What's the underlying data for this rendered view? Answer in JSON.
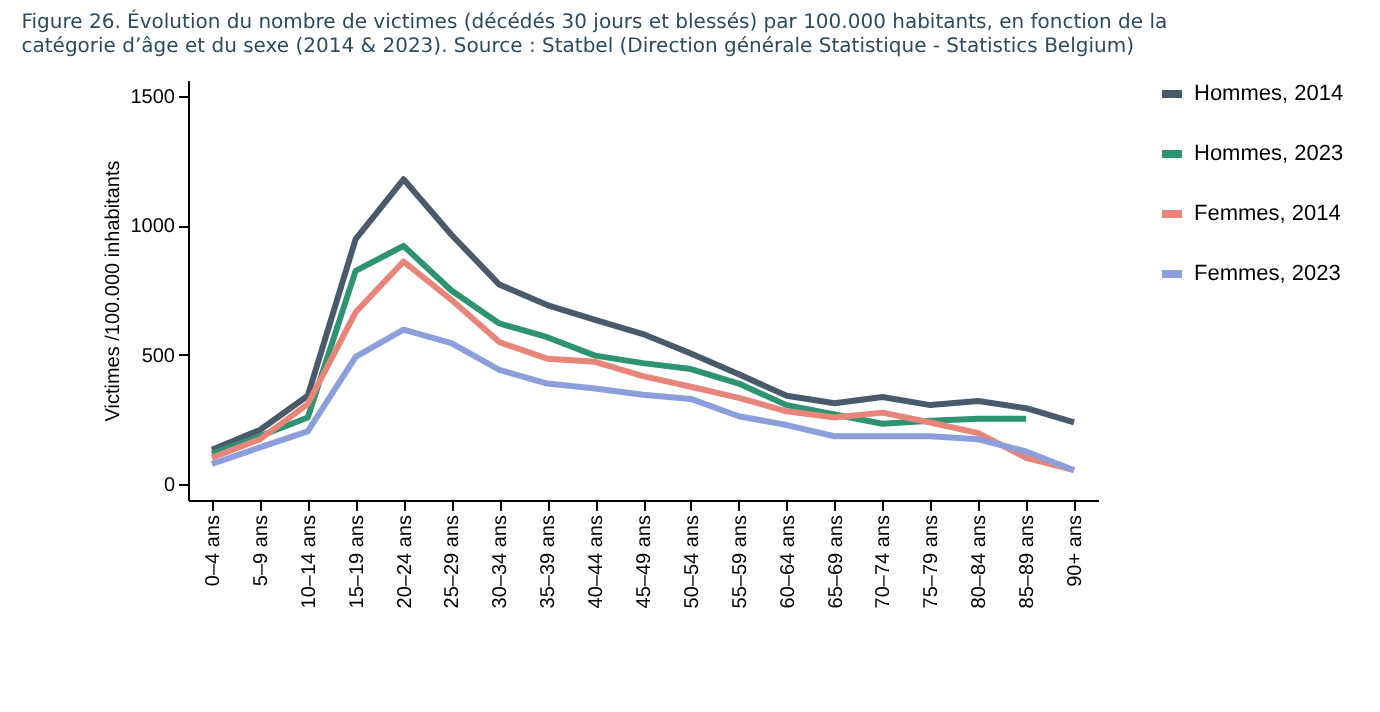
{
  "chart_data": {
    "type": "line",
    "title": "Figure 26. Évolution du nombre de victimes (décédés 30 jours et blessés) par 100.000 habitants, en fonction de la catégorie d’âge et du sexe (2014 & 2023). Source : Statbel (Direction générale Statistique - Statistics Belgium)",
    "ylabel": "Victimes /100.000 inhabitants",
    "categories": [
      "0–4 ans",
      "5–9 ans",
      "10–14 ans",
      "15–19 ans",
      "20–24 ans",
      "25–29 ans",
      "30–34 ans",
      "35–39 ans",
      "40–44 ans",
      "45–49 ans",
      "50–54 ans",
      "55–59 ans",
      "60–64 ans",
      "65–69 ans",
      "70–74 ans",
      "75–79 ans",
      "80–84 ans",
      "85–89 ans",
      "90+ ans"
    ],
    "series": [
      {
        "name": "Hommes, 2014",
        "color": "#4a5a6a",
        "values": [
          134,
          210,
          342,
          946,
          1177,
          963,
          771,
          692,
          635,
          580,
          505,
          425,
          342,
          313,
          337,
          306,
          322,
          294,
          239
        ]
      },
      {
        "name": "Hommes, 2023",
        "color": "#2e9370",
        "values": [
          119,
          186,
          258,
          824,
          920,
          748,
          621,
          568,
          497,
          468,
          445,
          389,
          306,
          270,
          234,
          246,
          253,
          253,
          null
        ]
      },
      {
        "name": "Femmes, 2014",
        "color": "#e8857a",
        "values": [
          103,
          174,
          310,
          664,
          860,
          712,
          549,
          485,
          473,
          418,
          377,
          334,
          282,
          258,
          277,
          239,
          198,
          103,
          55
        ]
      },
      {
        "name": "Femmes, 2023",
        "color": "#8c9fdb",
        "values": [
          79,
          143,
          205,
          492,
          597,
          545,
          442,
          389,
          370,
          346,
          330,
          263,
          229,
          186,
          186,
          186,
          174,
          127,
          55
        ]
      }
    ],
    "ylim": [
      -60,
      1560
    ],
    "yticks": [
      0,
      500,
      1000,
      1500
    ],
    "grid": false,
    "legend": "right",
    "line_style": "solid",
    "marker": "none"
  }
}
